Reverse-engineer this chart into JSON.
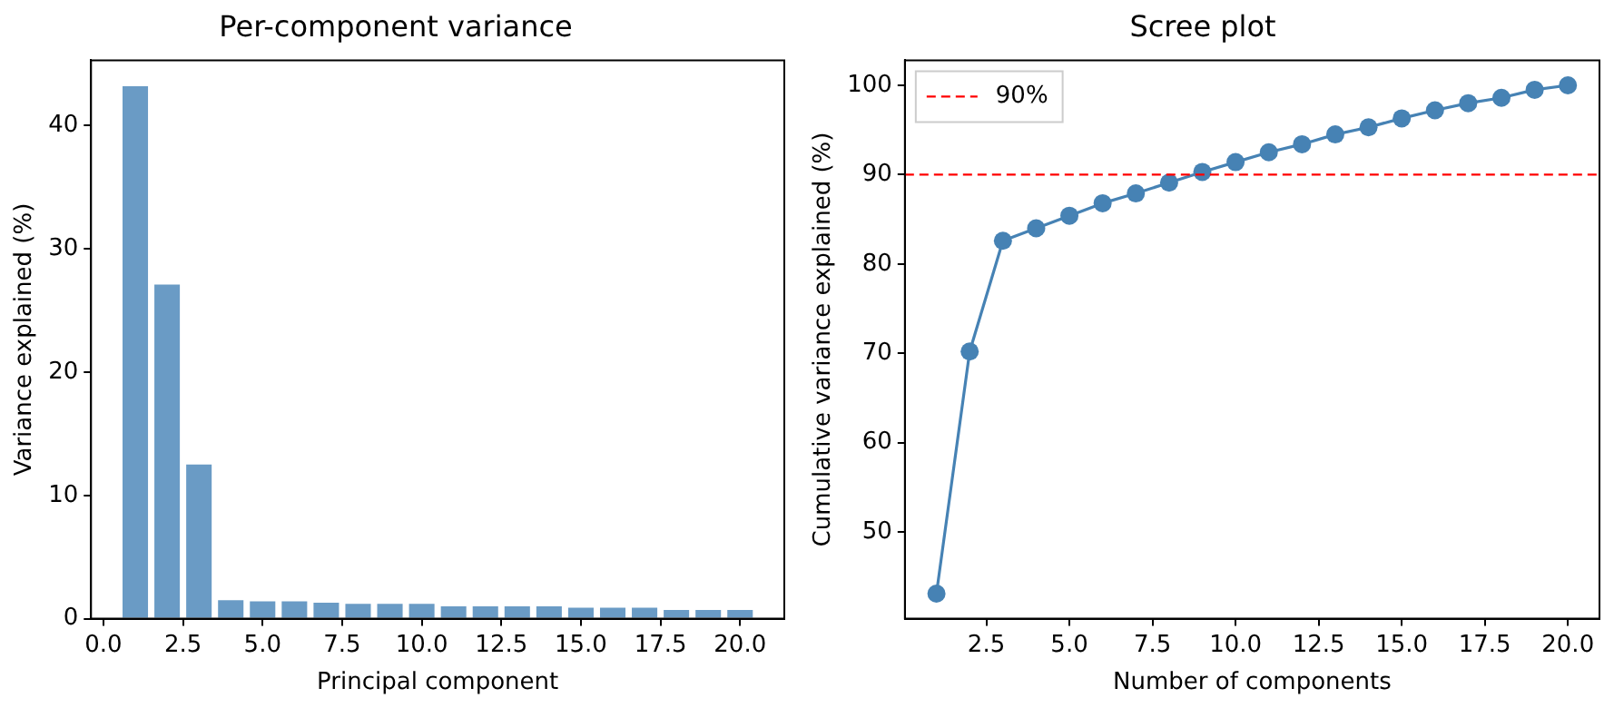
{
  "chart_data": [
    {
      "type": "bar",
      "title": "Per-component variance",
      "xlabel": "Principal component",
      "ylabel": "Variance explained (%)",
      "x": [
        1,
        2,
        3,
        4,
        5,
        6,
        7,
        8,
        9,
        10,
        11,
        12,
        13,
        14,
        15,
        16,
        17,
        18,
        19,
        20
      ],
      "values": [
        43.2,
        27.1,
        12.5,
        1.5,
        1.4,
        1.4,
        1.3,
        1.2,
        1.2,
        1.2,
        1.0,
        1.0,
        1.0,
        1.0,
        0.9,
        0.9,
        0.9,
        0.7,
        0.7,
        0.7
      ],
      "color": "#6a9bc5",
      "xlim": [
        -0.39,
        21.39
      ],
      "xticks": [
        {
          "value": 0,
          "label": "0.0"
        },
        2.5,
        {
          "value": 5,
          "label": "5.0"
        },
        7.5,
        {
          "value": 10,
          "label": "10.0"
        },
        12.5,
        {
          "value": 15,
          "label": "15.0"
        },
        17.5,
        {
          "value": 20,
          "label": "20.0"
        }
      ],
      "ylim": [
        0,
        45.3
      ],
      "yticks": [
        0,
        10,
        20,
        30,
        40
      ],
      "grid": false
    },
    {
      "type": "line",
      "title": "Scree plot",
      "xlabel": "Number of components",
      "ylabel": "Cumulative variance explained (%)",
      "x": [
        1,
        2,
        3,
        4,
        5,
        6,
        7,
        8,
        9,
        10,
        11,
        12,
        13,
        14,
        15,
        16,
        17,
        18,
        19,
        20
      ],
      "series": [
        {
          "color": "#4682b4",
          "values": [
            43.1,
            70.2,
            82.6,
            84.0,
            85.4,
            86.8,
            87.9,
            89.1,
            90.3,
            91.4,
            92.5,
            93.4,
            94.5,
            95.3,
            96.3,
            97.2,
            98.0,
            98.6,
            99.5,
            100
          ]
        }
      ],
      "xlim": [
        0.05,
        20.95
      ],
      "xticks": [
        2.5,
        {
          "value": 5,
          "label": "5.0"
        },
        7.5,
        {
          "value": 10,
          "label": "10.0"
        },
        12.5,
        {
          "value": 15,
          "label": "15.0"
        },
        17.5,
        {
          "value": 20,
          "label": "20.0"
        }
      ],
      "ylim": [
        40.3,
        102.8
      ],
      "yticks": [
        50,
        60,
        70,
        80,
        90,
        100
      ],
      "ref_lines": [
        {
          "axis": "y",
          "value": 90,
          "label": "90%",
          "color": "#ff0000",
          "line_style": "dashed"
        }
      ],
      "marker": "circle",
      "line_style": "solid",
      "legend": "top left",
      "grid": false
    }
  ]
}
